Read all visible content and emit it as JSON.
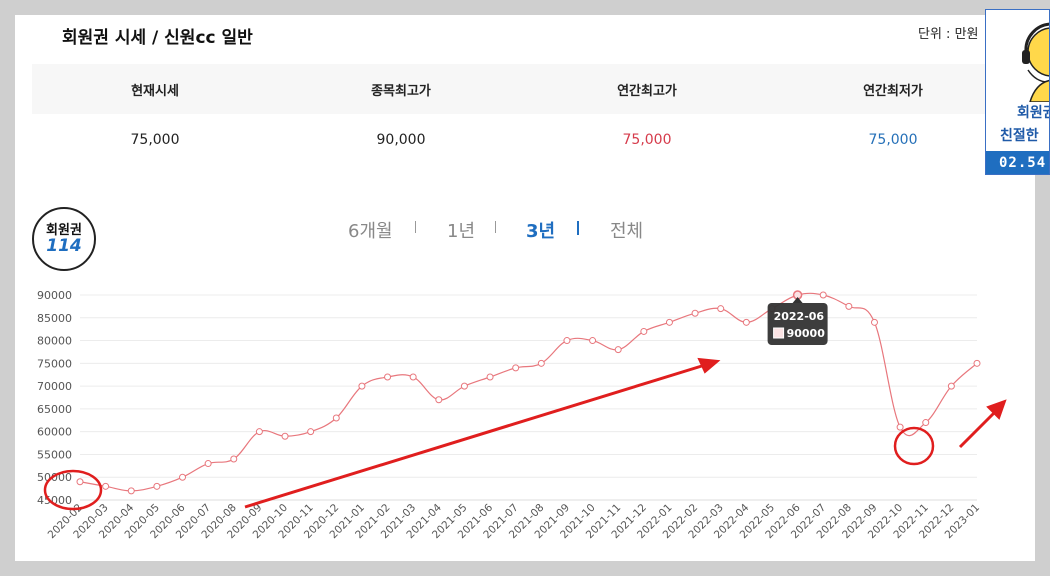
{
  "page": {
    "title": "회원권 시세 / 신원cc 일반",
    "unit_label": "단위 : 만원"
  },
  "stats": {
    "headers": [
      "현재시세",
      "종목최고가",
      "연간최고가",
      "연간최저가"
    ],
    "values": [
      "75,000",
      "90,000",
      "75,000",
      "75,000"
    ],
    "colors": [
      "#222222",
      "#222222",
      "#d63b4b",
      "#2570b8"
    ]
  },
  "logo": {
    "top": "회원권",
    "num": "114"
  },
  "tabs": [
    {
      "label": "6개월",
      "active": false
    },
    {
      "label": "1년",
      "active": false
    },
    {
      "label": "3년",
      "active": true
    },
    {
      "label": "전체",
      "active": false
    }
  ],
  "widget": {
    "line1": "회원권",
    "line2": "친절한",
    "time": "02.54"
  },
  "chart_data": {
    "type": "line",
    "x": [
      "2020-02",
      "2020-03",
      "2020-04",
      "2020-05",
      "2020-06",
      "2020-07",
      "2020-08",
      "2020-09",
      "2020-10",
      "2020-11",
      "2020-12",
      "2021-01",
      "2021-02",
      "2021-03",
      "2021-04",
      "2021-05",
      "2021-06",
      "2021-07",
      "2021-08",
      "2021-09",
      "2021-10",
      "2021-11",
      "2021-12",
      "2022-01",
      "2022-02",
      "2022-03",
      "2022-04",
      "2022-05",
      "2022-06",
      "2022-07",
      "2022-08",
      "2022-09",
      "2022-10",
      "2022-11",
      "2022-12",
      "2023-01"
    ],
    "series": [
      {
        "values": [
          49000,
          48000,
          47000,
          48000,
          50000,
          53000,
          54000,
          60000,
          59000,
          60000,
          63000,
          70000,
          72000,
          72000,
          67000,
          70000,
          72000,
          74000,
          75000,
          80000,
          80000,
          78000,
          82000,
          84000,
          86000,
          87000,
          84000,
          87000,
          90000,
          90000,
          87500,
          84000,
          61000,
          62000,
          70000,
          75000
        ],
        "color": "#e8777d"
      }
    ],
    "ylim": [
      45000,
      90000
    ],
    "yticks": [
      45000,
      50000,
      55000,
      60000,
      65000,
      70000,
      75000,
      80000,
      85000,
      90000
    ],
    "grid": true,
    "tooltip": {
      "label": "2022-06",
      "value": "90000"
    }
  }
}
